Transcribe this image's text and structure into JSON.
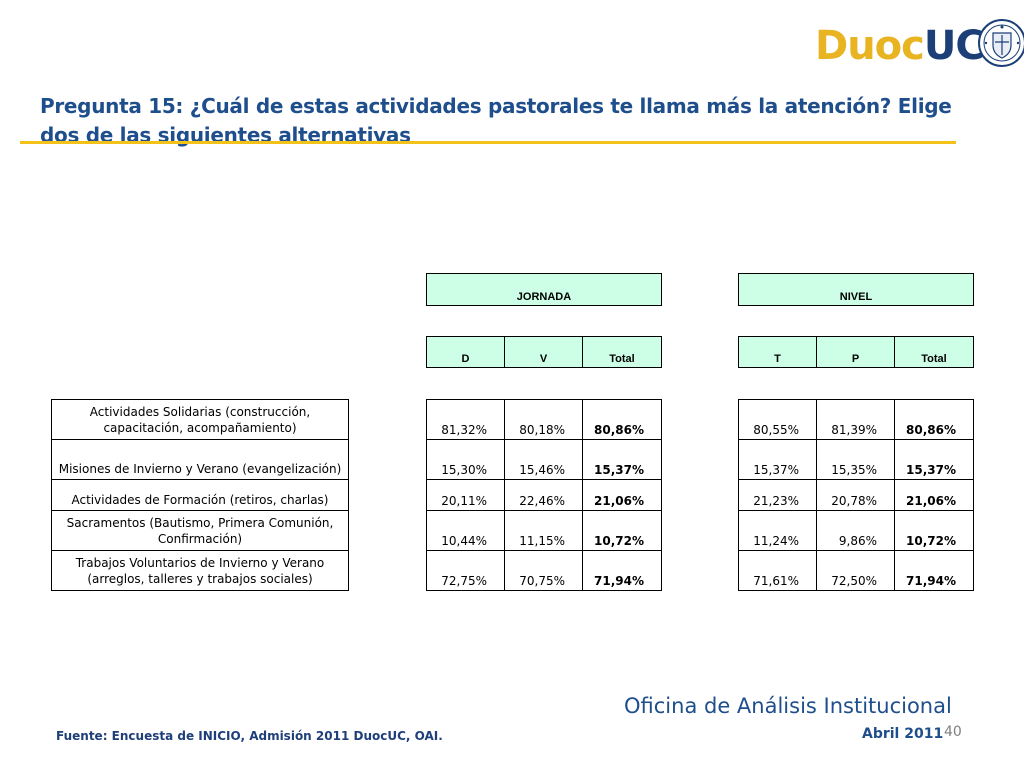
{
  "logo": {
    "duoc": "Duoc",
    "uc": "UC"
  },
  "title": "Pregunta 15: ¿Cuál de estas actividades pastorales te llama más la atención? Elige dos de las siguientes alternativas",
  "table": {
    "groups": {
      "jornada": "JORNADA",
      "nivel": "NIVEL"
    },
    "columns": {
      "d": "D",
      "v": "V",
      "total_j": "Total",
      "t": "T",
      "p": "P",
      "total_n": "Total"
    },
    "rows": [
      {
        "label": "Actividades Solidarias (construcción, capacitación, acompañamiento)",
        "d": "81,32%",
        "v": "80,18%",
        "total_j": "80,86%",
        "t": "80,55%",
        "p": "81,39%",
        "total_n": "80,86%"
      },
      {
        "label": "Misiones de Invierno y Verano (evangelización)",
        "d": "15,30%",
        "v": "15,46%",
        "total_j": "15,37%",
        "t": "15,37%",
        "p": "15,35%",
        "total_n": "15,37%"
      },
      {
        "label": "Actividades de Formación (retiros, charlas)",
        "d": "20,11%",
        "v": "22,46%",
        "total_j": "21,06%",
        "t": "21,23%",
        "p": "20,78%",
        "total_n": "21,06%"
      },
      {
        "label": "Sacramentos (Bautismo, Primera Comunión, Confirmación)",
        "d": "10,44%",
        "v": "11,15%",
        "total_j": "10,72%",
        "t": "11,24%",
        "p": "9,86%",
        "total_n": "10,72%"
      },
      {
        "label": "Trabajos Voluntarios de Invierno y Verano (arreglos, talleres y trabajos sociales)",
        "d": "72,75%",
        "v": "70,75%",
        "total_j": "71,94%",
        "t": "71,61%",
        "p": "72,50%",
        "total_n": "71,94%"
      }
    ]
  },
  "footer": {
    "source": "Fuente: Encuesta de INICIO, Admisión 2011 DuocUC, OAI.",
    "office": "Oficina de Análisis Institucional",
    "date": "Abril 2011",
    "page": "40"
  },
  "colors": {
    "title": "#1f4e8c",
    "rule": "#f2c21b",
    "header_fill": "#ccffe6",
    "logo_gold": "#e8b421",
    "logo_blue": "#1c3f78"
  }
}
